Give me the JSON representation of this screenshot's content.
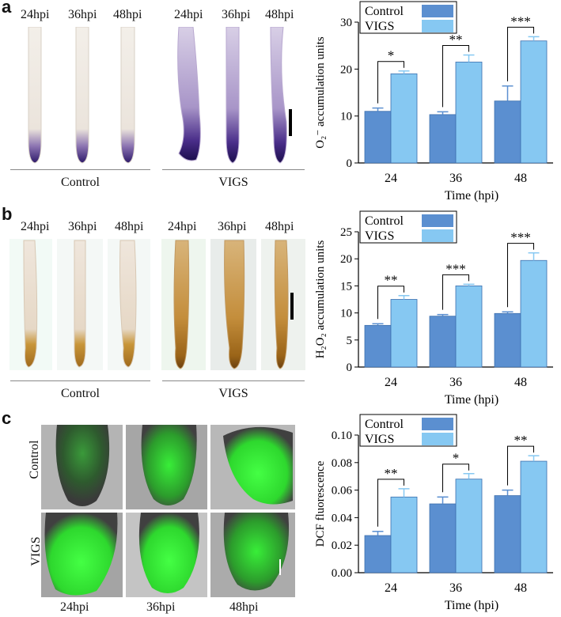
{
  "panels": [
    {
      "letter": "a",
      "time_labels": [
        "24hpi",
        "36hpi",
        "48hpi",
        "24hpi",
        "36hpi",
        "48hpi"
      ],
      "group_labels": [
        "Control",
        "VIGS"
      ],
      "stain": "nbt",
      "chart": {
        "type": "bar",
        "categories": [
          "24",
          "36",
          "48"
        ],
        "series": [
          {
            "name": "Control",
            "values": [
              11.0,
              10.3,
              13.2
            ],
            "errors": [
              0.7,
              0.6,
              3.2
            ]
          },
          {
            "name": "VIGS",
            "values": [
              19.0,
              21.5,
              26.0
            ],
            "errors": [
              0.6,
              1.5,
              0.9
            ]
          }
        ],
        "significance": [
          "*",
          "**",
          "***"
        ],
        "xlabel": "Time (hpi)",
        "ylabel": "O₂⁻ accumulation units",
        "ylim": [
          0,
          30
        ],
        "yticks": [
          "0",
          "10",
          "20",
          "30"
        ],
        "legend": "top-left",
        "colors": {
          "Control": "#5b8fd0",
          "VIGS": "#86c8f2"
        }
      }
    },
    {
      "letter": "b",
      "time_labels": [
        "24hpi",
        "36hpi",
        "48hpi",
        "24hpi",
        "36hpi",
        "48hpi"
      ],
      "group_labels": [
        "Control",
        "VIGS"
      ],
      "stain": "dab",
      "chart": {
        "type": "bar",
        "categories": [
          "24",
          "36",
          "48"
        ],
        "series": [
          {
            "name": "Control",
            "values": [
              7.7,
              9.4,
              9.9
            ],
            "errors": [
              0.3,
              0.3,
              0.3
            ]
          },
          {
            "name": "VIGS",
            "values": [
              12.5,
              15.0,
              19.7
            ],
            "errors": [
              0.7,
              0.3,
              1.4
            ]
          }
        ],
        "significance": [
          "**",
          "***",
          "***"
        ],
        "xlabel": "Time (hpi)",
        "ylabel": "H₂O₂ accumulation units",
        "ylim": [
          0,
          25
        ],
        "yticks": [
          "0",
          "5",
          "10",
          "15",
          "20",
          "25"
        ],
        "legend": "top-left",
        "colors": {
          "Control": "#5b8fd0",
          "VIGS": "#86c8f2"
        }
      }
    },
    {
      "letter": "c",
      "time_labels": [
        "24hpi",
        "36hpi",
        "48hpi"
      ],
      "row_labels": [
        "Control",
        "VIGS"
      ],
      "stain": "dcf",
      "chart": {
        "type": "bar",
        "categories": [
          "24",
          "36",
          "48"
        ],
        "series": [
          {
            "name": "Control",
            "values": [
              0.027,
              0.05,
              0.056
            ],
            "errors": [
              0.003,
              0.005,
              0.004
            ]
          },
          {
            "name": "VIGS",
            "values": [
              0.055,
              0.068,
              0.081
            ],
            "errors": [
              0.006,
              0.004,
              0.004
            ]
          }
        ],
        "significance": [
          "**",
          "*",
          "**"
        ],
        "xlabel": "Time (hpi)",
        "ylabel": "DCF fluorescence",
        "ylim": [
          0,
          0.1
        ],
        "yticks": [
          "0.00",
          "0.02",
          "0.04",
          "0.06",
          "0.08",
          "0.10"
        ],
        "legend": "top-left",
        "colors": {
          "Control": "#5b8fd0",
          "VIGS": "#86c8f2"
        }
      }
    }
  ]
}
